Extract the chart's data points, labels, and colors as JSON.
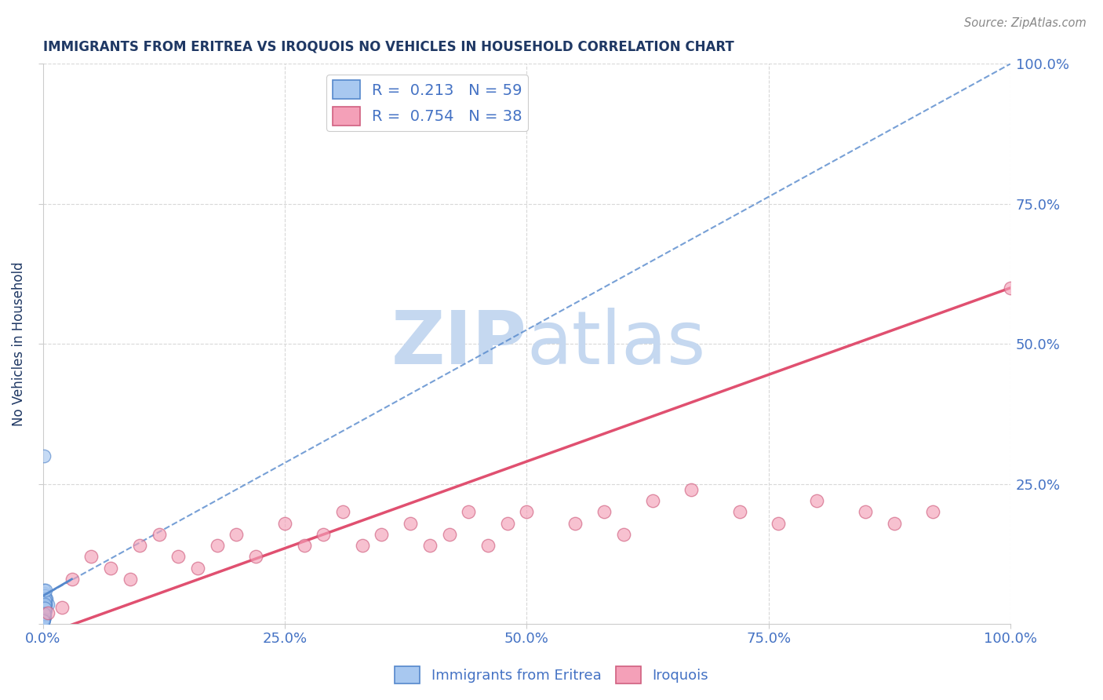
{
  "title": "IMMIGRANTS FROM ERITREA VS IROQUOIS NO VEHICLES IN HOUSEHOLD CORRELATION CHART",
  "source_text": "Source: ZipAtlas.com",
  "ylabel": "No Vehicles in Household",
  "xlabel": "",
  "xlim": [
    0,
    100
  ],
  "ylim": [
    0,
    100
  ],
  "xticks": [
    0,
    25,
    50,
    75,
    100
  ],
  "yticks": [
    0,
    25,
    50,
    75,
    100
  ],
  "xticklabels": [
    "0.0%",
    "25.0%",
    "50.0%",
    "75.0%",
    "100.0%"
  ],
  "yticklabels": [
    "",
    "25.0%",
    "50.0%",
    "75.0%",
    "100.0%"
  ],
  "blue_R": 0.213,
  "blue_N": 59,
  "pink_R": 0.754,
  "pink_N": 38,
  "blue_color": "#A8C8F0",
  "pink_color": "#F4A0B8",
  "blue_edge_color": "#5588CC",
  "pink_edge_color": "#D06080",
  "blue_line_color": "#5588CC",
  "pink_line_color": "#E05070",
  "blue_scatter": [
    [
      0.1,
      2.0
    ],
    [
      0.15,
      5.5
    ],
    [
      0.2,
      3.0
    ],
    [
      0.05,
      1.0
    ],
    [
      0.08,
      1.5
    ],
    [
      0.1,
      6.0
    ],
    [
      0.12,
      2.8
    ],
    [
      0.3,
      3.5
    ],
    [
      0.4,
      4.5
    ],
    [
      0.05,
      0.8
    ],
    [
      0.07,
      2.0
    ],
    [
      0.15,
      2.5
    ],
    [
      0.18,
      1.2
    ],
    [
      0.06,
      0.5
    ],
    [
      0.04,
      0.3
    ],
    [
      0.1,
      1.8
    ],
    [
      0.25,
      4.0
    ],
    [
      0.15,
      30.0
    ],
    [
      0.5,
      3.5
    ],
    [
      0.3,
      2.5
    ],
    [
      0.08,
      1.2
    ],
    [
      0.05,
      0.5
    ],
    [
      0.12,
      1.0
    ],
    [
      0.06,
      1.8
    ],
    [
      0.14,
      3.2
    ],
    [
      0.2,
      5.0
    ],
    [
      0.1,
      0.8
    ],
    [
      0.03,
      1.2
    ],
    [
      0.16,
      2.3
    ],
    [
      0.28,
      3.5
    ],
    [
      0.05,
      0.9
    ],
    [
      0.08,
      1.4
    ],
    [
      0.12,
      2.3
    ],
    [
      0.07,
      0.6
    ],
    [
      0.1,
      2.1
    ],
    [
      0.2,
      2.8
    ],
    [
      0.14,
      3.8
    ],
    [
      0.3,
      4.5
    ],
    [
      0.05,
      1.1
    ],
    [
      0.08,
      1.7
    ],
    [
      0.12,
      2.4
    ],
    [
      0.18,
      4.2
    ],
    [
      0.06,
      0.7
    ],
    [
      0.03,
      0.4
    ],
    [
      0.16,
      1.8
    ],
    [
      0.24,
      3.2
    ],
    [
      0.1,
      2.6
    ],
    [
      0.06,
      1.3
    ],
    [
      0.14,
      3.0
    ],
    [
      0.08,
      1.1
    ],
    [
      0.12,
      2.0
    ],
    [
      0.2,
      3.5
    ],
    [
      0.05,
      1.0
    ],
    [
      0.1,
      1.6
    ],
    [
      0.16,
      2.8
    ],
    [
      0.06,
      0.9
    ],
    [
      0.3,
      6.0
    ],
    [
      0.08,
      1.9
    ],
    [
      0.05,
      0.6
    ]
  ],
  "pink_scatter": [
    [
      0.5,
      2.0
    ],
    [
      2.0,
      3.0
    ],
    [
      3.0,
      8.0
    ],
    [
      5.0,
      12.0
    ],
    [
      7.0,
      10.0
    ],
    [
      9.0,
      8.0
    ],
    [
      10.0,
      14.0
    ],
    [
      12.0,
      16.0
    ],
    [
      14.0,
      12.0
    ],
    [
      16.0,
      10.0
    ],
    [
      18.0,
      14.0
    ],
    [
      20.0,
      16.0
    ],
    [
      22.0,
      12.0
    ],
    [
      25.0,
      18.0
    ],
    [
      27.0,
      14.0
    ],
    [
      29.0,
      16.0
    ],
    [
      31.0,
      20.0
    ],
    [
      33.0,
      14.0
    ],
    [
      35.0,
      16.0
    ],
    [
      38.0,
      18.0
    ],
    [
      40.0,
      14.0
    ],
    [
      42.0,
      16.0
    ],
    [
      44.0,
      20.0
    ],
    [
      46.0,
      14.0
    ],
    [
      48.0,
      18.0
    ],
    [
      50.0,
      20.0
    ],
    [
      55.0,
      18.0
    ],
    [
      58.0,
      20.0
    ],
    [
      60.0,
      16.0
    ],
    [
      63.0,
      22.0
    ],
    [
      67.0,
      24.0
    ],
    [
      72.0,
      20.0
    ],
    [
      76.0,
      18.0
    ],
    [
      80.0,
      22.0
    ],
    [
      85.0,
      20.0
    ],
    [
      88.0,
      18.0
    ],
    [
      92.0,
      20.0
    ],
    [
      100.0,
      60.0
    ]
  ],
  "blue_trend": [
    0,
    100,
    5,
    100
  ],
  "pink_trend": [
    0,
    100,
    -5,
    60
  ],
  "watermark_zip": "ZIP",
  "watermark_atlas": "atlas",
  "watermark_color": "#C5D8F0",
  "title_color": "#1F3864",
  "axis_label_color": "#1F3864",
  "tick_color": "#4472C4",
  "grid_color": "#D8D8D8"
}
